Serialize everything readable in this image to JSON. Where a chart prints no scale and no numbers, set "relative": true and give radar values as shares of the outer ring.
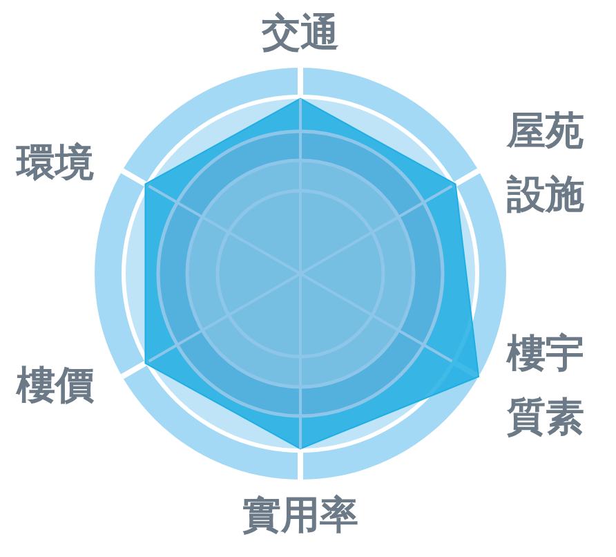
{
  "chart_data": {
    "type": "radar",
    "categories": [
      "交通",
      "屋苑設施",
      "樓宇質素",
      "實用率",
      "樓價",
      "環境"
    ],
    "relative": true,
    "grid": true,
    "series": [
      {
        "color": "#1eaee3",
        "values": [
          0.85,
          0.87,
          1.0,
          0.85,
          0.87,
          0.87
        ]
      }
    ]
  }
}
